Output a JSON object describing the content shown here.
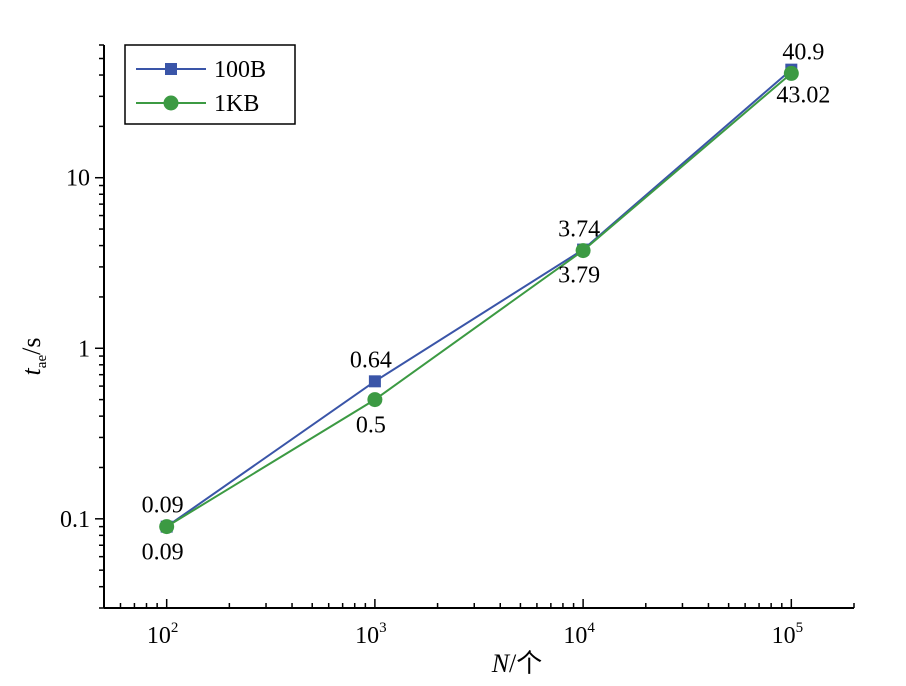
{
  "chart_data": {
    "type": "line",
    "x_scale": "log",
    "y_scale": "log",
    "x": [
      100,
      1000,
      10000,
      100000
    ],
    "xlim": [
      50,
      200000
    ],
    "ylim": [
      0.03,
      60
    ],
    "x_tick_labels": [
      {
        "value": 100,
        "base": "10",
        "exp": "2"
      },
      {
        "value": 1000,
        "base": "10",
        "exp": "3"
      },
      {
        "value": 10000,
        "base": "10",
        "exp": "4"
      },
      {
        "value": 100000,
        "base": "10",
        "exp": "5"
      }
    ],
    "y_ticks": [
      {
        "value": 0.1,
        "label": "0.1"
      },
      {
        "value": 1,
        "label": "1"
      },
      {
        "value": 10,
        "label": "10"
      }
    ],
    "xlabel": {
      "main": "N",
      "unit": "/个"
    },
    "ylabel": {
      "main": "t",
      "subscript": "ae",
      "unit": "/s"
    },
    "legend_position": "top-left",
    "grid": false,
    "series": [
      {
        "name": "100B",
        "color": "#3a55a8",
        "marker": "square",
        "values": [
          0.09,
          0.64,
          3.79,
          43.02
        ],
        "labels": [
          "0.09",
          "0.64",
          "3.79",
          "43.02"
        ],
        "label_side": [
          "above",
          "above",
          "below",
          "below"
        ]
      },
      {
        "name": "1KB",
        "color": "#3c9a43",
        "marker": "circle",
        "values": [
          0.09,
          0.5,
          3.74,
          40.9
        ],
        "labels": [
          "0.09",
          "0.5",
          "3.74",
          "40.9"
        ],
        "label_side": [
          "below",
          "below",
          "above",
          "above"
        ]
      }
    ]
  }
}
